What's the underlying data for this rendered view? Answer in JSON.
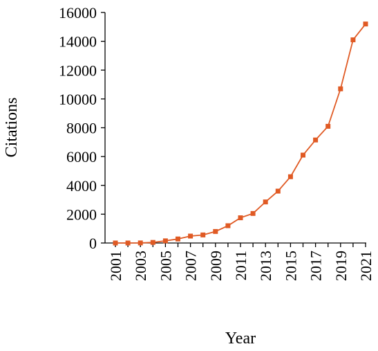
{
  "chart_data": {
    "type": "line",
    "title": "",
    "xlabel": "Year",
    "ylabel": "Citations",
    "x": [
      2001,
      2002,
      2003,
      2004,
      2005,
      2006,
      2007,
      2008,
      2009,
      2010,
      2011,
      2012,
      2013,
      2014,
      2015,
      2016,
      2017,
      2018,
      2019,
      2020,
      2021
    ],
    "x_tick_labels": [
      "2001",
      "2003",
      "2005",
      "2007",
      "2009",
      "2011",
      "2013",
      "2015",
      "2017",
      "2019",
      "2021"
    ],
    "y_ticks": [
      0,
      2000,
      4000,
      6000,
      8000,
      10000,
      12000,
      14000,
      16000
    ],
    "ylim": [
      0,
      16000
    ],
    "xlim": [
      2001,
      2021
    ],
    "grid": false,
    "legend": "none",
    "series": [
      {
        "values": [
          0,
          0,
          5,
          40,
          150,
          280,
          480,
          560,
          800,
          1200,
          1750,
          2050,
          2850,
          3600,
          4600,
          6100,
          7150,
          8100,
          10700,
          14100,
          15200
        ],
        "color": "#E05A24",
        "marker": "square"
      }
    ]
  }
}
